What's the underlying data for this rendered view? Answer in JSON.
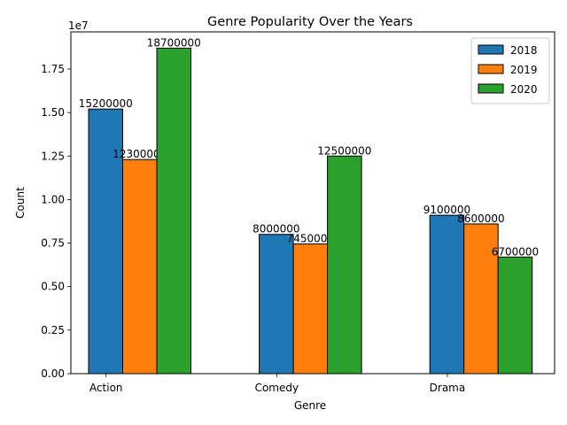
{
  "chart_data": {
    "type": "bar",
    "title": "Genre Popularity Over the Years",
    "xlabel": "Genre",
    "ylabel": "Count",
    "offset_label": "1e7",
    "categories": [
      "Action",
      "Comedy",
      "Drama"
    ],
    "series": [
      {
        "name": "2018",
        "color": "#1f77b4",
        "values": [
          15200000,
          8000000,
          9100000
        ]
      },
      {
        "name": "2019",
        "color": "#ff7f0e",
        "values": [
          12300000,
          7450000,
          8600000
        ]
      },
      {
        "name": "2020",
        "color": "#2ca02c",
        "values": [
          18700000,
          12500000,
          6700000
        ]
      }
    ],
    "ylim": [
      0,
      19635000
    ],
    "yticks": [
      {
        "value": 0,
        "label": "0.00"
      },
      {
        "value": 2500000,
        "label": "0.25"
      },
      {
        "value": 5000000,
        "label": "0.50"
      },
      {
        "value": 7500000,
        "label": "0.75"
      },
      {
        "value": 10000000,
        "label": "1.00"
      },
      {
        "value": 12500000,
        "label": "1.25"
      },
      {
        "value": 15000000,
        "label": "1.50"
      },
      {
        "value": 17500000,
        "label": "1.75"
      }
    ],
    "grid": false,
    "legend_position": "top-right"
  }
}
